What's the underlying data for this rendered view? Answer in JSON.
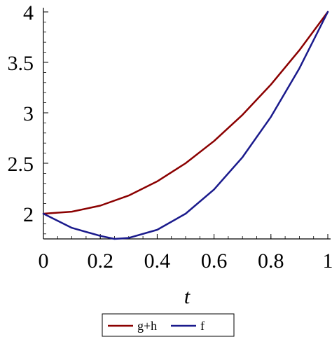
{
  "chart_data": {
    "type": "line",
    "xlabel": "t",
    "ylabel": "",
    "title": "",
    "xlim": [
      0,
      1
    ],
    "ylim": [
      1.75,
      4
    ],
    "xticks": [
      0,
      0.2,
      0.4,
      0.6,
      0.8,
      1
    ],
    "xtick_labels": [
      "0",
      "0.2",
      "0.4",
      "0.6",
      "0.8",
      "1"
    ],
    "yticks": [
      2,
      2.5,
      3,
      3.5,
      4
    ],
    "ytick_labels": [
      "2",
      "2.5",
      "3",
      "3.5",
      "4"
    ],
    "grid": false,
    "legend_position": "bottom",
    "series": [
      {
        "name": "g+h",
        "color": "#8b0000",
        "x": [
          0,
          0.1,
          0.2,
          0.3,
          0.4,
          0.5,
          0.6,
          0.7,
          0.8,
          0.9,
          1
        ],
        "y": [
          2,
          2.02,
          2.08,
          2.18,
          2.32,
          2.5,
          2.72,
          2.98,
          3.28,
          3.62,
          4
        ]
      },
      {
        "name": "f",
        "color": "#1a1a8c",
        "x": [
          0,
          0.1,
          0.2,
          0.25,
          0.3,
          0.4,
          0.5,
          0.6,
          0.7,
          0.8,
          0.9,
          1
        ],
        "y": [
          2,
          1.86,
          1.78,
          1.75,
          1.76,
          1.84,
          2,
          2.24,
          2.56,
          2.96,
          3.44,
          4
        ]
      }
    ]
  }
}
